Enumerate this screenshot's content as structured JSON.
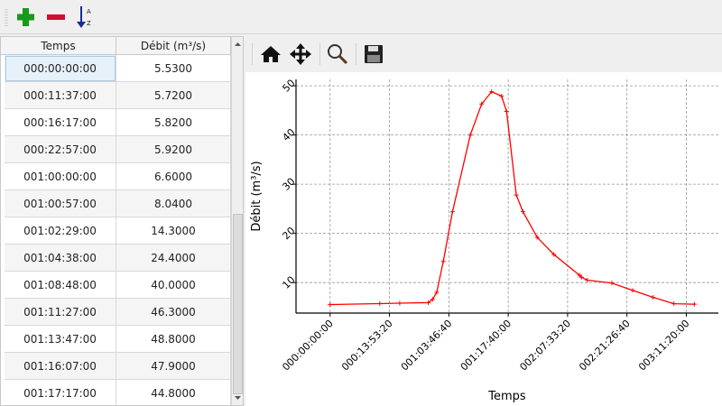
{
  "toolbar": {
    "icons": [
      "add-icon",
      "remove-icon",
      "sort-az-icon"
    ],
    "colors": {
      "add": "#1a9a1a",
      "remove": "#cc1133",
      "sort": "#1a2a9a"
    }
  },
  "table": {
    "headers": [
      "Temps",
      "Débit (m³/s)"
    ],
    "rows": [
      [
        "000:00:00:00",
        "5.5300"
      ],
      [
        "000:11:37:00",
        "5.7200"
      ],
      [
        "000:16:17:00",
        "5.8200"
      ],
      [
        "000:22:57:00",
        "5.9200"
      ],
      [
        "001:00:00:00",
        "6.6000"
      ],
      [
        "001:00:57:00",
        "8.0400"
      ],
      [
        "001:02:29:00",
        "14.3000"
      ],
      [
        "001:04:38:00",
        "24.4000"
      ],
      [
        "001:08:48:00",
        "40.0000"
      ],
      [
        "001:11:27:00",
        "46.3000"
      ],
      [
        "001:13:47:00",
        "48.8000"
      ],
      [
        "001:16:07:00",
        "47.9000"
      ],
      [
        "001:17:17:00",
        "44.8000"
      ]
    ]
  },
  "plot_toolbar": {
    "icons": [
      "home-icon",
      "pan-icon",
      "zoom-icon",
      "save-icon"
    ]
  },
  "chart_data": {
    "type": "line",
    "xlabel": "Temps",
    "ylabel": "Débit (m³/s)",
    "x_format": "DDD:HH:MM:SS (seconds)",
    "xlim": [
      -28700,
      327000
    ],
    "ylim": [
      3.8,
      51.3
    ],
    "xticks": [
      0,
      50000,
      100000,
      150000,
      200000,
      250000,
      300000
    ],
    "xtick_labels": [
      "000:00:00:00",
      "000:13:53:20",
      "001:03:46:40",
      "001:17:40:00",
      "002:07:33:20",
      "002:21:26:40",
      "003:11:20:00"
    ],
    "yticks": [
      10,
      20,
      30,
      40,
      50
    ],
    "ytick_labels": [
      "10",
      "20",
      "30",
      "40",
      "50"
    ],
    "grid": true,
    "color": "#ff0000",
    "x": [
      0,
      41820,
      58620,
      82620,
      86400,
      89820,
      95340,
      103080,
      118080,
      127620,
      136020,
      144420,
      148620,
      156800,
      162400,
      174400,
      188500,
      210000,
      211700,
      216600,
      237300,
      254900,
      271900,
      289500,
      306800
    ],
    "y": [
      5.53,
      5.72,
      5.82,
      5.92,
      6.6,
      8.04,
      14.3,
      24.4,
      40.0,
      46.3,
      48.8,
      47.9,
      44.8,
      27.8,
      24.4,
      19.2,
      15.7,
      11.5,
      11.1,
      10.5,
      9.9,
      8.4,
      7.0,
      5.7,
      5.6
    ]
  }
}
